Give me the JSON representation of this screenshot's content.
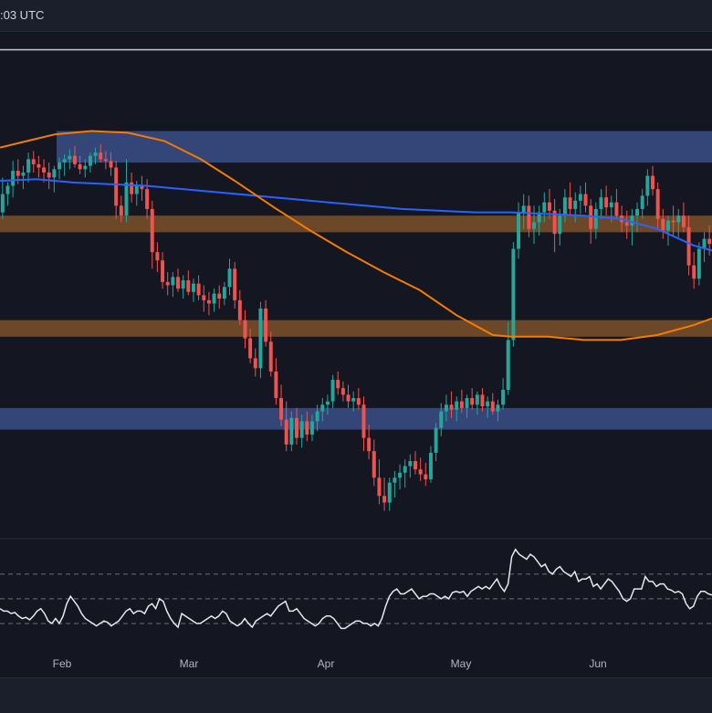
{
  "header": {
    "timestamp": ":03 UTC"
  },
  "colors": {
    "background": "#141722",
    "up": "#26a69a",
    "down": "#ef5350",
    "ma_blue": "#2962ff",
    "ma_orange": "#f57c00",
    "zone_blue": "#3a4d86",
    "zone_orange": "#8b5a2b",
    "rsi_line": "#e6e8ee"
  },
  "chart_data": [
    {
      "type": "candlestick",
      "x_ticks": [
        "Feb",
        "Mar",
        "Apr",
        "May",
        "Jun"
      ],
      "ohlc": [
        [
          154,
          175,
          150,
          165
        ],
        [
          165,
          172,
          158,
          170
        ],
        [
          170,
          185,
          163,
          179
        ],
        [
          179,
          186,
          171,
          176
        ],
        [
          176,
          182,
          168,
          178
        ],
        [
          178,
          190,
          172,
          186
        ],
        [
          186,
          191,
          178,
          183
        ],
        [
          183,
          188,
          175,
          181
        ],
        [
          181,
          186,
          172,
          178
        ],
        [
          178,
          184,
          168,
          175
        ],
        [
          175,
          182,
          166,
          180
        ],
        [
          180,
          187,
          174,
          184
        ],
        [
          184,
          189,
          176,
          186
        ],
        [
          186,
          192,
          180,
          188
        ],
        [
          188,
          194,
          181,
          183
        ],
        [
          183,
          188,
          177,
          180
        ],
        [
          180,
          186,
          175,
          182
        ],
        [
          182,
          190,
          178,
          188
        ],
        [
          188,
          193,
          183,
          190
        ],
        [
          190,
          195,
          184,
          186
        ],
        [
          186,
          191,
          180,
          185
        ],
        [
          185,
          190,
          176,
          181
        ],
        [
          181,
          185,
          150,
          158
        ],
        [
          158,
          164,
          148,
          152
        ],
        [
          152,
          186,
          148,
          172
        ],
        [
          172,
          178,
          160,
          165
        ],
        [
          165,
          173,
          158,
          170
        ],
        [
          170,
          176,
          161,
          168
        ],
        [
          168,
          174,
          150,
          156
        ],
        [
          156,
          161,
          120,
          130
        ],
        [
          130,
          136,
          118,
          125
        ],
        [
          125,
          130,
          108,
          112
        ],
        [
          112,
          118,
          104,
          110
        ],
        [
          110,
          118,
          103,
          115
        ],
        [
          115,
          120,
          106,
          108
        ],
        [
          108,
          116,
          102,
          113
        ],
        [
          113,
          119,
          104,
          106
        ],
        [
          106,
          114,
          100,
          111
        ],
        [
          111,
          116,
          101,
          104
        ],
        [
          104,
          110,
          94,
          101
        ],
        [
          101,
          106,
          92,
          99
        ],
        [
          99,
          108,
          94,
          105
        ],
        [
          105,
          110,
          96,
          102
        ],
        [
          102,
          112,
          98,
          109
        ],
        [
          109,
          126,
          104,
          120
        ],
        [
          120,
          124,
          96,
          101
        ],
        [
          101,
          107,
          86,
          89
        ],
        [
          89,
          95,
          72,
          78
        ],
        [
          78,
          84,
          63,
          66
        ],
        [
          66,
          72,
          55,
          60
        ],
        [
          60,
          100,
          54,
          96
        ],
        [
          96,
          101,
          73,
          76
        ],
        [
          76,
          82,
          55,
          58
        ],
        [
          58,
          66,
          38,
          42
        ],
        [
          42,
          50,
          25,
          29
        ],
        [
          29,
          40,
          10,
          14
        ],
        [
          14,
          34,
          10,
          30
        ],
        [
          30,
          36,
          14,
          18
        ],
        [
          18,
          32,
          12,
          28
        ],
        [
          28,
          34,
          16,
          20
        ],
        [
          20,
          32,
          16,
          28
        ],
        [
          28,
          38,
          22,
          34
        ],
        [
          34,
          42,
          28,
          38
        ],
        [
          38,
          44,
          32,
          40
        ],
        [
          40,
          56,
          36,
          53
        ],
        [
          53,
          58,
          44,
          48
        ],
        [
          48,
          52,
          40,
          44
        ],
        [
          44,
          50,
          36,
          40
        ],
        [
          40,
          46,
          34,
          42
        ],
        [
          42,
          48,
          35,
          38
        ],
        [
          38,
          43,
          10,
          18
        ],
        [
          18,
          26,
          5,
          10
        ],
        [
          10,
          17,
          -11,
          -6
        ],
        [
          -6,
          5,
          -22,
          -17
        ],
        [
          -17,
          -6,
          -26,
          -21
        ],
        [
          -21,
          -6,
          -26,
          -9
        ],
        [
          -9,
          -2,
          -18,
          -6
        ],
        [
          -6,
          2,
          -13,
          -3
        ],
        [
          -3,
          5,
          -12,
          1
        ],
        [
          1,
          8,
          -6,
          4
        ],
        [
          4,
          10,
          -4,
          -1
        ],
        [
          -1,
          6,
          -8,
          -4
        ],
        [
          -4,
          3,
          -11,
          -7
        ],
        [
          -7,
          13,
          -9,
          9
        ],
        [
          9,
          27,
          4,
          24
        ],
        [
          24,
          39,
          19,
          34
        ],
        [
          34,
          44,
          28,
          38
        ],
        [
          38,
          46,
          30,
          35
        ],
        [
          35,
          43,
          28,
          40
        ],
        [
          40,
          47,
          33,
          36
        ],
        [
          36,
          44,
          30,
          42
        ],
        [
          42,
          48,
          35,
          38
        ],
        [
          38,
          46,
          32,
          44
        ],
        [
          44,
          48,
          34,
          37
        ],
        [
          37,
          43,
          30,
          40
        ],
        [
          40,
          45,
          32,
          34
        ],
        [
          34,
          41,
          28,
          38
        ],
        [
          38,
          54,
          35,
          47
        ],
        [
          47,
          88,
          44,
          77
        ],
        [
          77,
          136,
          73,
          132
        ],
        [
          132,
          160,
          126,
          154
        ],
        [
          154,
          165,
          144,
          158
        ],
        [
          158,
          164,
          139,
          144
        ],
        [
          144,
          158,
          135,
          148
        ],
        [
          148,
          158,
          140,
          154
        ],
        [
          154,
          166,
          148,
          160
        ],
        [
          160,
          168,
          150,
          155
        ],
        [
          155,
          162,
          130,
          141
        ],
        [
          141,
          156,
          134,
          152
        ],
        [
          152,
          168,
          148,
          163
        ],
        [
          163,
          172,
          152,
          156
        ],
        [
          156,
          166,
          148,
          161
        ],
        [
          161,
          170,
          153,
          165
        ],
        [
          165,
          172,
          154,
          158
        ],
        [
          158,
          162,
          135,
          144
        ],
        [
          144,
          160,
          138,
          156
        ],
        [
          156,
          168,
          150,
          163
        ],
        [
          163,
          170,
          152,
          157
        ],
        [
          157,
          164,
          148,
          160
        ],
        [
          160,
          168,
          150,
          152
        ],
        [
          152,
          158,
          142,
          148
        ],
        [
          148,
          155,
          138,
          146
        ],
        [
          146,
          156,
          134,
          152
        ],
        [
          152,
          160,
          142,
          156
        ],
        [
          156,
          168,
          150,
          164
        ],
        [
          164,
          180,
          158,
          176
        ],
        [
          176,
          182,
          164,
          168
        ],
        [
          168,
          172,
          144,
          150
        ],
        [
          150,
          156,
          138,
          143
        ],
        [
          143,
          152,
          134,
          149
        ],
        [
          149,
          158,
          140,
          148
        ],
        [
          148,
          156,
          139,
          152
        ],
        [
          152,
          160,
          142,
          145
        ],
        [
          145,
          152,
          116,
          122
        ],
        [
          122,
          130,
          108,
          114
        ],
        [
          114,
          136,
          110,
          132
        ],
        [
          132,
          142,
          124,
          138
        ],
        [
          138,
          146,
          128,
          135
        ]
      ],
      "ma_blue": [
        [
          0,
          173
        ],
        [
          40,
          174
        ],
        [
          80,
          172
        ],
        [
          120,
          171
        ],
        [
          160,
          170
        ],
        [
          200,
          168
        ],
        [
          240,
          166
        ],
        [
          280,
          164
        ],
        [
          320,
          162
        ],
        [
          360,
          160
        ],
        [
          400,
          158
        ],
        [
          440,
          156
        ],
        [
          480,
          155
        ],
        [
          520,
          154
        ],
        [
          560,
          154
        ],
        [
          600,
          153
        ],
        [
          640,
          152
        ],
        [
          680,
          150
        ],
        [
          720,
          144
        ],
        [
          760,
          134
        ],
        [
          780,
          131
        ]
      ],
      "ma_orange": [
        [
          0,
          193
        ],
        [
          30,
          197
        ],
        [
          60,
          201
        ],
        [
          100,
          203
        ],
        [
          140,
          202
        ],
        [
          180,
          197
        ],
        [
          220,
          186
        ],
        [
          260,
          172
        ],
        [
          300,
          157
        ],
        [
          340,
          143
        ],
        [
          380,
          130
        ],
        [
          420,
          118
        ],
        [
          460,
          107
        ],
        [
          500,
          92
        ],
        [
          520,
          86
        ],
        [
          540,
          80
        ],
        [
          560,
          79
        ],
        [
          600,
          79
        ],
        [
          640,
          77
        ],
        [
          680,
          77
        ],
        [
          720,
          80
        ],
        [
          760,
          86
        ],
        [
          780,
          90
        ]
      ],
      "zones": [
        {
          "name": "resistance-blue",
          "low": 184,
          "high": 203
        },
        {
          "name": "resistance-orange",
          "low": 142,
          "high": 152
        },
        {
          "name": "support-orange",
          "low": 79,
          "high": 89
        },
        {
          "name": "support-blue",
          "low": 23,
          "high": 36
        }
      ],
      "horizontal_line": 252
    },
    {
      "type": "line",
      "name": "rsi",
      "levels": [
        70,
        50,
        30
      ],
      "values": [
        42,
        40,
        40,
        38,
        39,
        36,
        34,
        35,
        33,
        36,
        40,
        42,
        38,
        32,
        30,
        34,
        30,
        36,
        46,
        52,
        48,
        44,
        38,
        34,
        32,
        30,
        28,
        30,
        32,
        31,
        28,
        30,
        32,
        36,
        40,
        42,
        38,
        40,
        40,
        38,
        44,
        46,
        42,
        50,
        48,
        40,
        34,
        30,
        27,
        38,
        36,
        34,
        32,
        30,
        30,
        32,
        34,
        36,
        34,
        36,
        40,
        38,
        32,
        30,
        28,
        30,
        34,
        30,
        27,
        32,
        34,
        36,
        38,
        36,
        40,
        44,
        46,
        48,
        40,
        40,
        42,
        38,
        34,
        32,
        30,
        28,
        30,
        34,
        36,
        36,
        34,
        30,
        26,
        26,
        28,
        30,
        32,
        32,
        30,
        30,
        28,
        30,
        28,
        34,
        44,
        52,
        56,
        58,
        54,
        54,
        56,
        58,
        54,
        50,
        52,
        52,
        54,
        54,
        52,
        50,
        52,
        50,
        55,
        56,
        55,
        56,
        52,
        56,
        58,
        60,
        58,
        60,
        58,
        62,
        66,
        60,
        56,
        62,
        84,
        90,
        86,
        84,
        82,
        86,
        84,
        80,
        76,
        78,
        72,
        70,
        74,
        76,
        72,
        70,
        68,
        72,
        64,
        66,
        66,
        68,
        60,
        62,
        58,
        62,
        66,
        64,
        60,
        56,
        50,
        48,
        50,
        58,
        58,
        58,
        68,
        64,
        64,
        60,
        62,
        62,
        58,
        57,
        55,
        56,
        54,
        46,
        42,
        44,
        52,
        56,
        56,
        54,
        53
      ]
    }
  ]
}
